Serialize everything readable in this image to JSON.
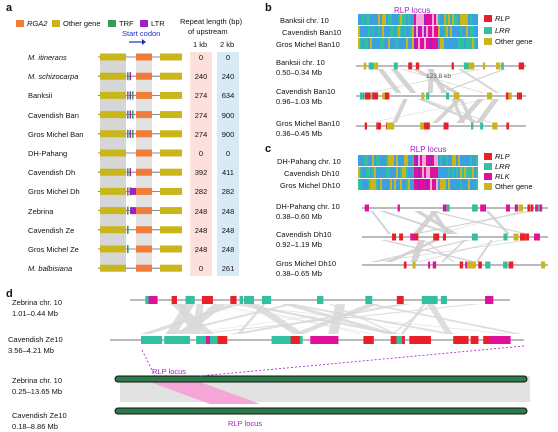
{
  "panels": {
    "a": "a",
    "b": "b",
    "c": "c",
    "d": "d"
  },
  "panel_a": {
    "legend": [
      {
        "label": "RGA2",
        "color": "#f07c3a",
        "italic": true
      },
      {
        "label": "Other gene",
        "color": "#c8b61c",
        "italic": false
      },
      {
        "label": "TRF",
        "color": "#3b9a5a",
        "italic": false
      },
      {
        "label": "LTR",
        "color": "#a020c8",
        "italic": false
      }
    ],
    "start_codon": "Start codon",
    "repeat_header": "Repeat length (bp)",
    "repeat_subheader": "of upstream",
    "col1": "1 kb",
    "col2": "2 kb",
    "rows": [
      {
        "label": "M. itinerans",
        "italic": true,
        "v1": "0",
        "v2": "0"
      },
      {
        "label": "M. schizocarpa",
        "italic": true,
        "v1": "240",
        "v2": "240"
      },
      {
        "label": "Banksii",
        "italic": false,
        "v1": "274",
        "v2": "634"
      },
      {
        "label": "Cavendish Ban",
        "italic": false,
        "v1": "274",
        "v2": "900"
      },
      {
        "label": "Gros Michel Ban",
        "italic": false,
        "v1": "274",
        "v2": "900"
      },
      {
        "label": "DH-Pahang",
        "italic": false,
        "v1": "0",
        "v2": "0"
      },
      {
        "label": "Cavendish Dh",
        "italic": false,
        "v1": "392",
        "v2": "411"
      },
      {
        "label": "Gros Michel Dh",
        "italic": false,
        "v1": "282",
        "v2": "282"
      },
      {
        "label": "Zebrina",
        "italic": false,
        "v1": "248",
        "v2": "248"
      },
      {
        "label": "Cavendish Ze",
        "italic": false,
        "v1": "248",
        "v2": "248"
      },
      {
        "label": "Gros Michel Ze",
        "italic": false,
        "v1": "248",
        "v2": "248"
      },
      {
        "label": "M. balbisiana",
        "italic": true,
        "v1": "0",
        "v2": "261"
      }
    ]
  },
  "panel_b": {
    "locus": "RLP locus",
    "heat_labels": [
      "Banksii chr. 10",
      "Cavendish Ban10",
      "Gros Michel Ban10"
    ],
    "legend": [
      {
        "label": "RLP",
        "color": "#e8202a"
      },
      {
        "label": "LRR",
        "color": "#33c0a0"
      },
      {
        "label": "Other gene",
        "color": "#c8b61c"
      }
    ],
    "tracks": [
      {
        "name": "Banksii chr. 10",
        "range": "0.50–0.34 Mb"
      },
      {
        "name": "Cavendish Ban10",
        "range": "0.96–1.03 Mb"
      },
      {
        "name": "Gros Michel Ban10",
        "range": "0.36–0.45 Mb"
      }
    ],
    "gap": "123.8 kb"
  },
  "panel_c": {
    "locus": "RLP locus",
    "heat_labels": [
      "DH-Pahang chr. 10",
      "Cavendish Dh10",
      "Gros Michel Dh10"
    ],
    "legend": [
      {
        "label": "RLP",
        "color": "#e8202a"
      },
      {
        "label": "LRR",
        "color": "#33c0a0"
      },
      {
        "label": "RLK",
        "color": "#e0109a"
      },
      {
        "label": "Other gene",
        "color": "#c8b61c"
      }
    ],
    "tracks": [
      {
        "name": "DH-Pahang chr. 10",
        "range": "0.38–0.60 Mb"
      },
      {
        "name": "Cavendish Dh10",
        "range": "0.92–1.19 Mb"
      },
      {
        "name": "Gros Michel Dh10",
        "range": "0.38–0.65 Mb"
      }
    ]
  },
  "panel_d": {
    "tracks": [
      {
        "name": "Zebrina chr. 10",
        "range": "1.01–0.44 Mb"
      },
      {
        "name": "Cavendish Ze10",
        "range": "3.56–4.21 Mb"
      }
    ],
    "chrom": [
      {
        "name": "Zebrina chr. 10",
        "range": "0.25–13.65 Mb"
      },
      {
        "name": "Cavendish Ze10",
        "range": "0.18–8.86 Mb"
      }
    ],
    "locus_top": "RLP locus",
    "locus_bottom": "RLP locus"
  }
}
